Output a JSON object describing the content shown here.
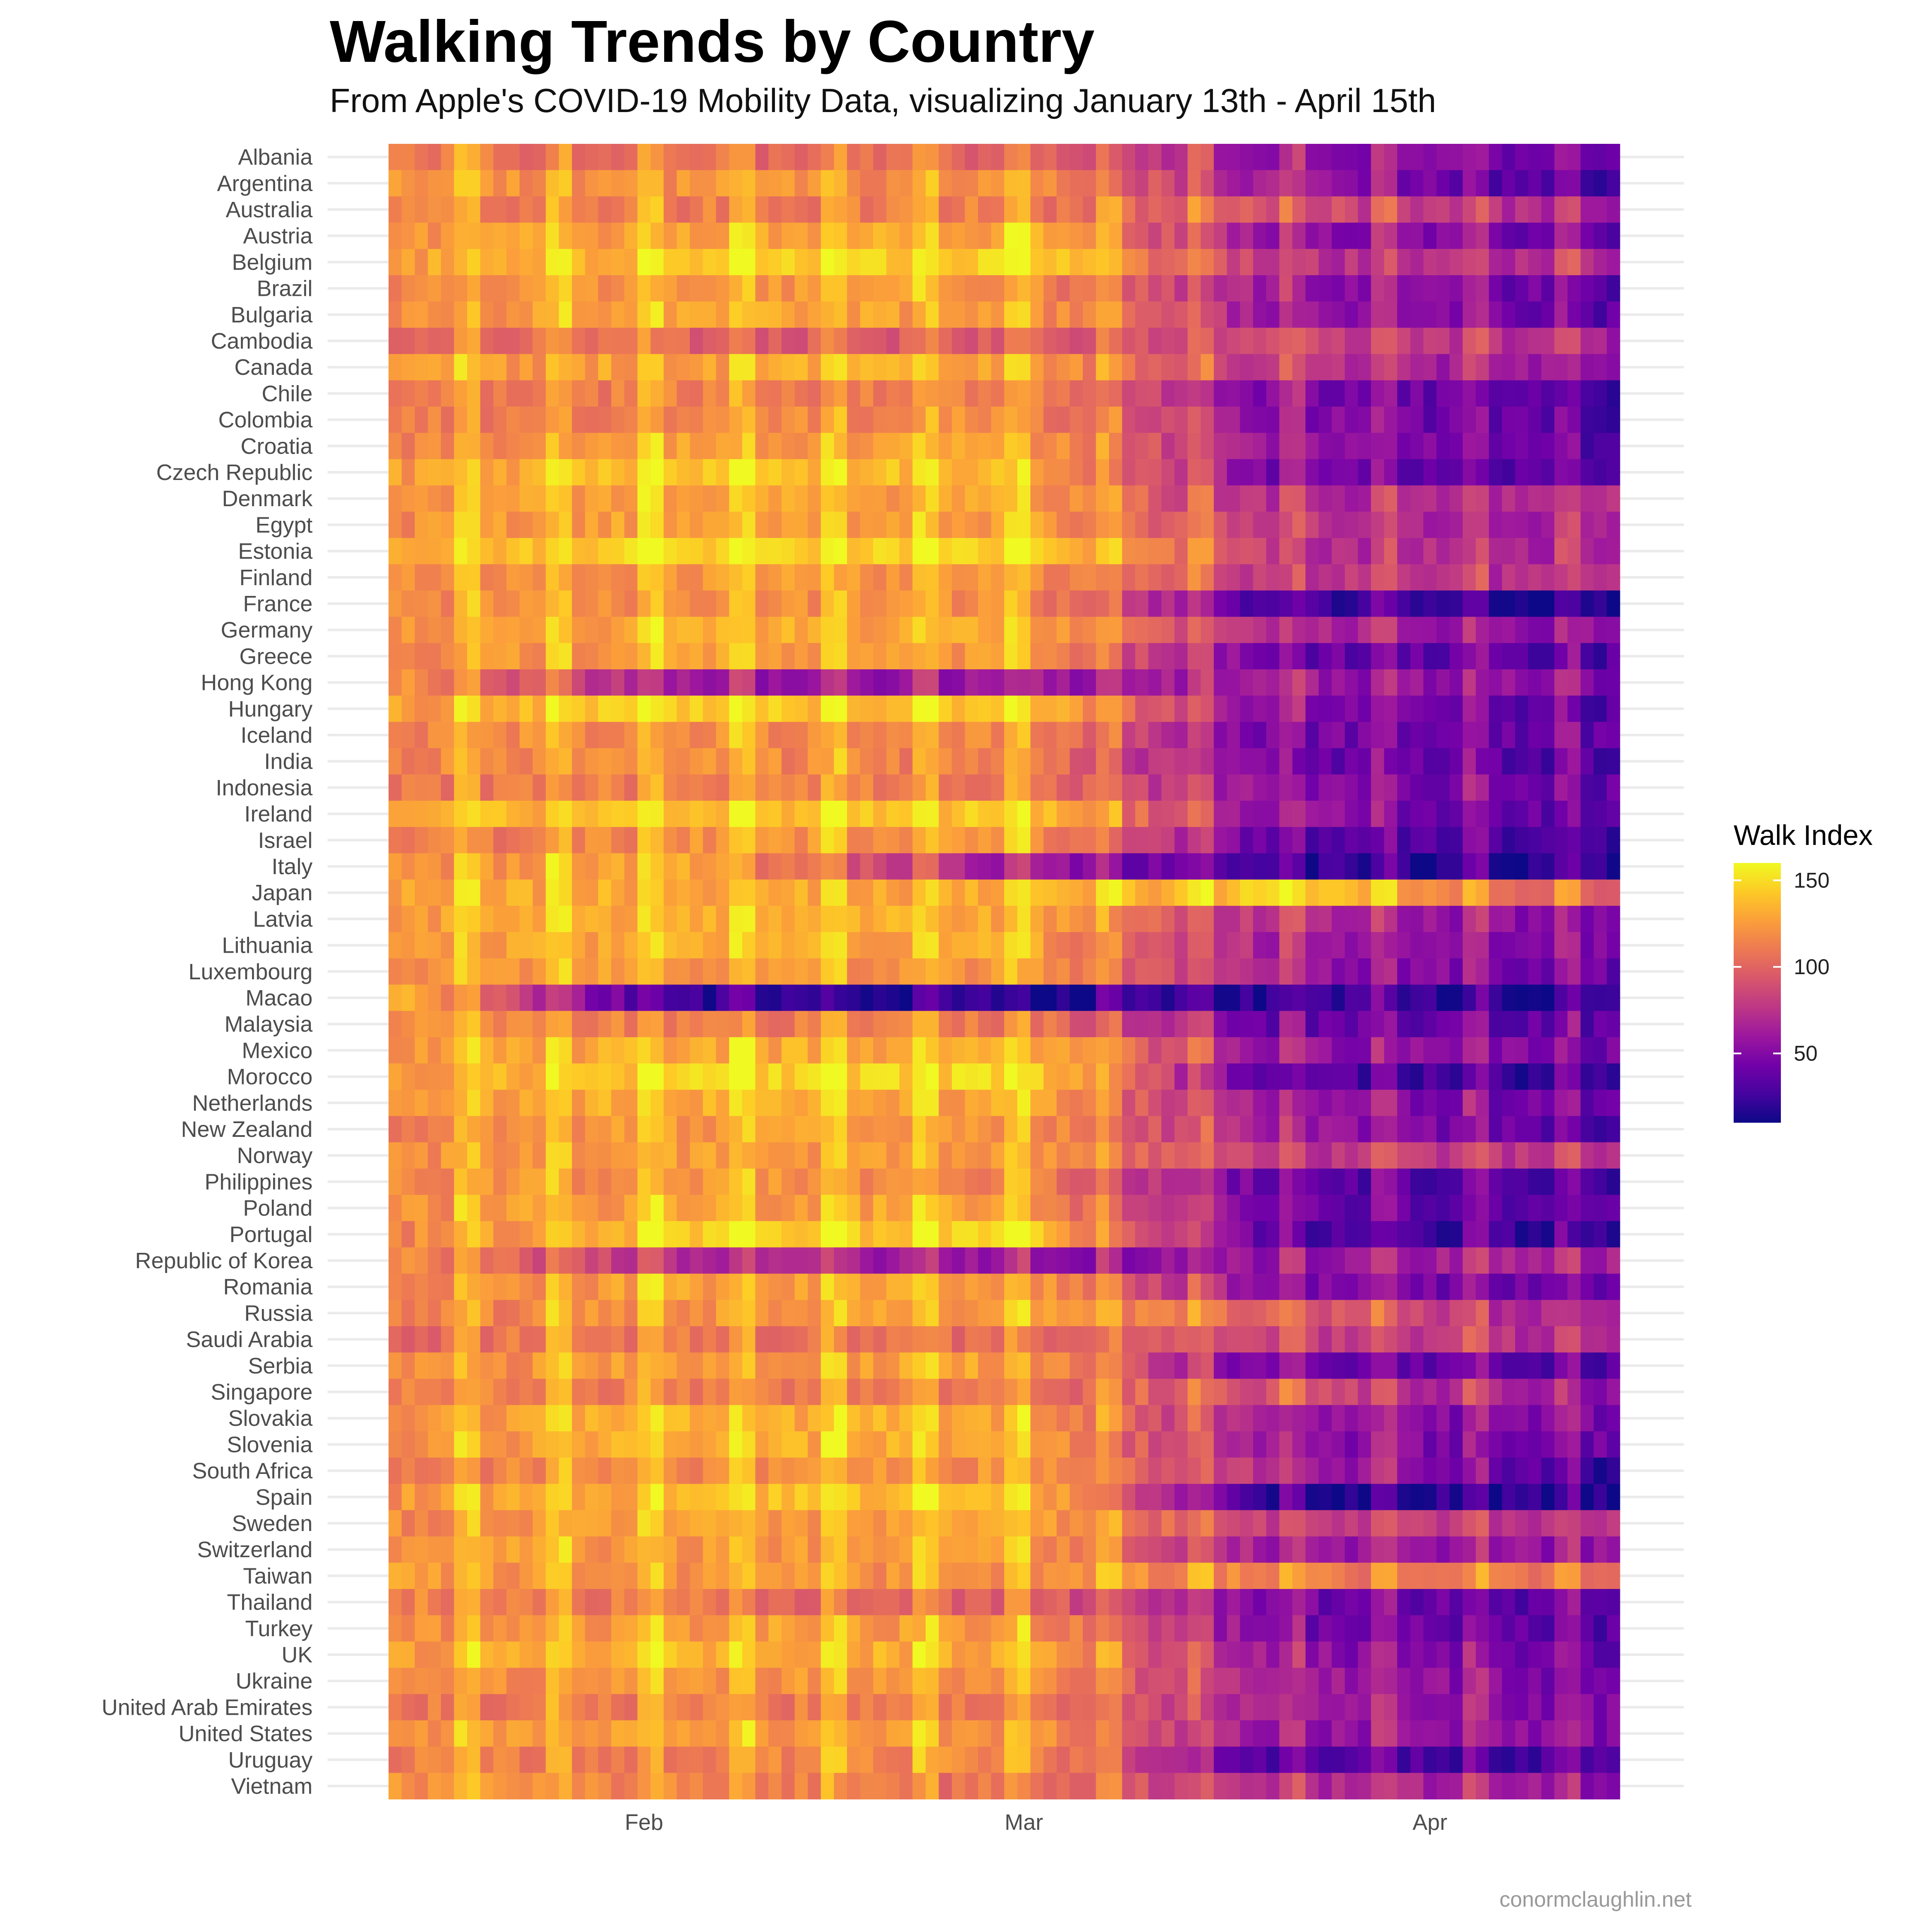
{
  "chart_data": {
    "type": "heatmap",
    "title": "Walking Trends by Country",
    "subtitle": "From Apple's COVID-19 Mobility Data, visualizing January 13th - April 15th",
    "caption": "conormclaughlin.net",
    "legend": {
      "title": "Walk Index",
      "ticks": [
        150,
        100,
        50
      ],
      "range": [
        10,
        160
      ],
      "placement": "right"
    },
    "colorscale": [
      "#0d0887",
      "#46039f",
      "#7201a8",
      "#9c179e",
      "#bd3786",
      "#d8576b",
      "#ed7953",
      "#fb9f3a",
      "#fdca26",
      "#f0f921"
    ],
    "x_axis": {
      "start_date": "2020-01-13",
      "end_date": "2020-04-15",
      "ticks": [
        "Feb",
        "Mar",
        "Apr"
      ]
    },
    "grid": "horizontal",
    "rows": [
      {
        "country": "Albania",
        "profile": [
          110,
          105,
          100,
          60,
          35
        ]
      },
      {
        "country": "Argentina",
        "profile": [
          120,
          120,
          118,
          60,
          20
        ]
      },
      {
        "country": "Australia",
        "profile": [
          112,
          112,
          112,
          90,
          60
        ]
      },
      {
        "country": "Austria",
        "profile": [
          118,
          130,
          130,
          60,
          35
        ]
      },
      {
        "country": "Belgium",
        "profile": [
          125,
          140,
          145,
          75,
          70
        ]
      },
      {
        "country": "Brazil",
        "profile": [
          115,
          120,
          120,
          60,
          35
        ]
      },
      {
        "country": "Bulgaria",
        "profile": [
          118,
          128,
          125,
          60,
          35
        ]
      },
      {
        "country": "Cambodia",
        "profile": [
          108,
          100,
          95,
          85,
          65
        ]
      },
      {
        "country": "Canada",
        "profile": [
          120,
          128,
          128,
          75,
          55
        ]
      },
      {
        "country": "Chile",
        "profile": [
          110,
          112,
          112,
          50,
          25
        ]
      },
      {
        "country": "Colombia",
        "profile": [
          112,
          115,
          118,
          55,
          28
        ]
      },
      {
        "country": "Croatia",
        "profile": [
          112,
          125,
          125,
          55,
          30
        ]
      },
      {
        "country": "Czech Republic",
        "profile": [
          125,
          140,
          135,
          45,
          30
        ]
      },
      {
        "country": "Denmark",
        "profile": [
          120,
          130,
          125,
          70,
          70
        ]
      },
      {
        "country": "Egypt",
        "profile": [
          118,
          128,
          125,
          75,
          60
        ]
      },
      {
        "country": "Estonia",
        "profile": [
          128,
          145,
          150,
          75,
          60
        ]
      },
      {
        "country": "Finland",
        "profile": [
          115,
          122,
          120,
          75,
          70
        ]
      },
      {
        "country": "France",
        "profile": [
          118,
          118,
          118,
          25,
          15
        ]
      },
      {
        "country": "Germany",
        "profile": [
          120,
          130,
          128,
          65,
          55
        ]
      },
      {
        "country": "Greece",
        "profile": [
          118,
          125,
          122,
          40,
          30
        ]
      },
      {
        "country": "Hong Kong",
        "profile": [
          125,
          60,
          60,
          60,
          50
        ]
      },
      {
        "country": "Hungary",
        "profile": [
          125,
          142,
          140,
          50,
          30
        ]
      },
      {
        "country": "Iceland",
        "profile": [
          115,
          120,
          118,
          45,
          35
        ]
      },
      {
        "country": "India",
        "profile": [
          115,
          118,
          112,
          40,
          30
        ]
      },
      {
        "country": "Indonesia",
        "profile": [
          110,
          112,
          110,
          50,
          35
        ]
      },
      {
        "country": "Ireland",
        "profile": [
          130,
          140,
          140,
          55,
          30
        ]
      },
      {
        "country": "Israel",
        "profile": [
          110,
          118,
          125,
          35,
          20
        ]
      },
      {
        "country": "Italy",
        "profile": [
          120,
          130,
          60,
          20,
          15
        ]
      },
      {
        "country": "Japan",
        "profile": [
          125,
          132,
          130,
          140,
          95
        ]
      },
      {
        "country": "Latvia",
        "profile": [
          122,
          135,
          130,
          70,
          45
        ]
      },
      {
        "country": "Lithuania",
        "profile": [
          120,
          130,
          128,
          65,
          45
        ]
      },
      {
        "country": "Luxembourg",
        "profile": [
          118,
          125,
          120,
          60,
          40
        ]
      },
      {
        "country": "Macao",
        "profile": [
          140,
          20,
          15,
          20,
          20
        ]
      },
      {
        "country": "Malaysia",
        "profile": [
          125,
          110,
          110,
          40,
          35
        ]
      },
      {
        "country": "Mexico",
        "profile": [
          125,
          130,
          132,
          60,
          40
        ]
      },
      {
        "country": "Morocco",
        "profile": [
          125,
          145,
          145,
          30,
          20
        ]
      },
      {
        "country": "Netherlands",
        "profile": [
          122,
          132,
          128,
          55,
          40
        ]
      },
      {
        "country": "New Zealand",
        "profile": [
          115,
          122,
          122,
          60,
          30
        ]
      },
      {
        "country": "Norway",
        "profile": [
          118,
          125,
          122,
          75,
          75
        ]
      },
      {
        "country": "Philippines",
        "profile": [
          118,
          122,
          115,
          35,
          25
        ]
      },
      {
        "country": "Poland",
        "profile": [
          118,
          128,
          125,
          40,
          30
        ]
      },
      {
        "country": "Portugal",
        "profile": [
          115,
          140,
          145,
          30,
          20
        ]
      },
      {
        "country": "Republic of Korea",
        "profile": [
          115,
          75,
          55,
          55,
          65
        ]
      },
      {
        "country": "Romania",
        "profile": [
          115,
          125,
          125,
          50,
          35
        ]
      },
      {
        "country": "Russia",
        "profile": [
          112,
          122,
          122,
          100,
          60
        ]
      },
      {
        "country": "Saudi Arabia",
        "profile": [
          105,
          110,
          105,
          80,
          70
        ]
      },
      {
        "country": "Serbia",
        "profile": [
          115,
          125,
          125,
          40,
          30
        ]
      },
      {
        "country": "Singapore",
        "profile": [
          115,
          110,
          108,
          90,
          50
        ]
      },
      {
        "country": "Slovakia",
        "profile": [
          118,
          132,
          130,
          55,
          45
        ]
      },
      {
        "country": "Slovenia",
        "profile": [
          118,
          132,
          130,
          55,
          40
        ]
      },
      {
        "country": "South Africa",
        "profile": [
          110,
          118,
          120,
          70,
          20
        ]
      },
      {
        "country": "Spain",
        "profile": [
          120,
          135,
          140,
          20,
          15
        ]
      },
      {
        "country": "Sweden",
        "profile": [
          118,
          125,
          125,
          80,
          70
        ]
      },
      {
        "country": "Switzerland",
        "profile": [
          120,
          125,
          122,
          60,
          55
        ]
      },
      {
        "country": "Taiwan",
        "profile": [
          125,
          122,
          118,
          115,
          100
        ]
      },
      {
        "country": "Thailand",
        "profile": [
          115,
          108,
          100,
          45,
          30
        ]
      },
      {
        "country": "Turkey",
        "profile": [
          118,
          125,
          125,
          45,
          30
        ]
      },
      {
        "country": "UK",
        "profile": [
          125,
          135,
          130,
          55,
          40
        ]
      },
      {
        "country": "Ukraine",
        "profile": [
          115,
          122,
          122,
          60,
          45
        ]
      },
      {
        "country": "United Arab Emirates",
        "profile": [
          110,
          112,
          108,
          60,
          45
        ]
      },
      {
        "country": "United States",
        "profile": [
          118,
          125,
          122,
          55,
          50
        ]
      },
      {
        "country": "Uruguay",
        "profile": [
          110,
          112,
          118,
          30,
          25
        ]
      },
      {
        "country": "Vietnam",
        "profile": [
          120,
          115,
          105,
          70,
          55
        ]
      }
    ]
  }
}
